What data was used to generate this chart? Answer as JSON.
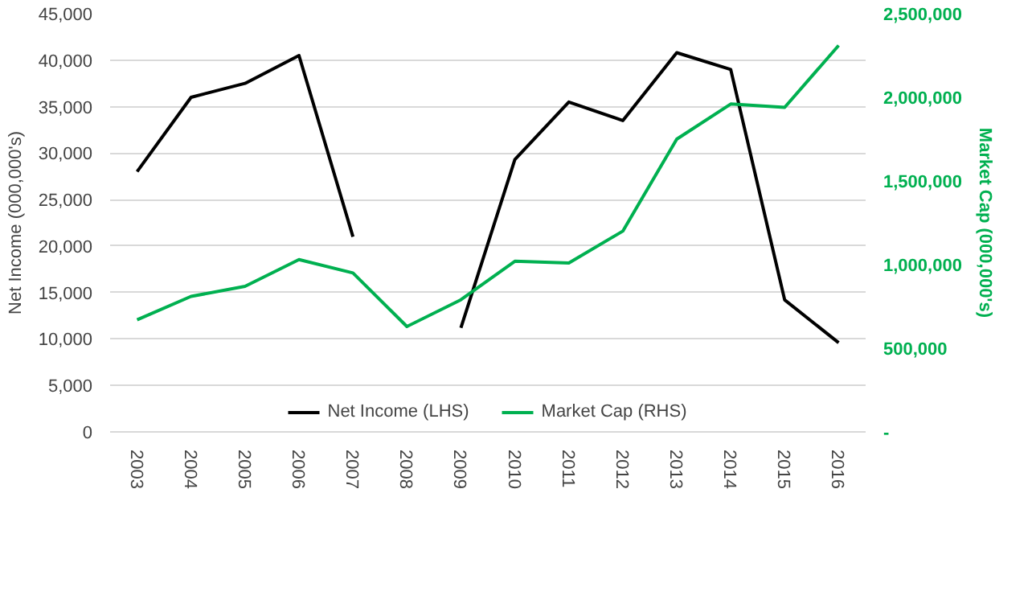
{
  "chart_data": {
    "type": "line",
    "ylabel": "Net Income (000,000's)",
    "y2label": "Market Cap (000,000's)",
    "categories": [
      "2003",
      "2004",
      "2005",
      "2006",
      "2007",
      "2008",
      "2009",
      "2010",
      "2011",
      "2012",
      "2013",
      "2014",
      "2015",
      "2016"
    ],
    "series": [
      {
        "name": "Net Income (LHS)",
        "color": "#000000",
        "values": [
          28000,
          36000,
          37500,
          40500,
          21000,
          null,
          11200,
          29300,
          35500,
          33500,
          40800,
          39000,
          14200,
          9600
        ]
      },
      {
        "name": "Market Cap (RHS)",
        "color": "#00b050",
        "axis": "y2",
        "values": [
          670000,
          810000,
          870000,
          1030000,
          950000,
          630000,
          790000,
          1020000,
          1010000,
          1200000,
          1750000,
          1960000,
          1940000,
          2310000
        ]
      }
    ],
    "ylim": [
      0,
      45000
    ],
    "yticks": [
      {
        "value": 0,
        "label": "0"
      },
      {
        "value": 5000,
        "label": "5,000"
      },
      {
        "value": 10000,
        "label": "10,000"
      },
      {
        "value": 15000,
        "label": "15,000"
      },
      {
        "value": 20000,
        "label": "20,000"
      },
      {
        "value": 25000,
        "label": "25,000"
      },
      {
        "value": 30000,
        "label": "30,000"
      },
      {
        "value": 35000,
        "label": "35,000"
      },
      {
        "value": 40000,
        "label": "40,000"
      },
      {
        "value": 45000,
        "label": "45,000"
      }
    ],
    "y2lim": [
      0,
      2500000
    ],
    "y2ticks": [
      {
        "value": 0,
        "label": "-"
      },
      {
        "value": 500000,
        "label": "500,000"
      },
      {
        "value": 1000000,
        "label": "1,000,000"
      },
      {
        "value": 1500000,
        "label": "1,500,000"
      },
      {
        "value": 2000000,
        "label": "2,000,000"
      },
      {
        "value": 2500000,
        "label": "2,500,000"
      }
    ],
    "grid": "y",
    "legend": "bottom",
    "line_style": "solid",
    "marker": "none"
  }
}
